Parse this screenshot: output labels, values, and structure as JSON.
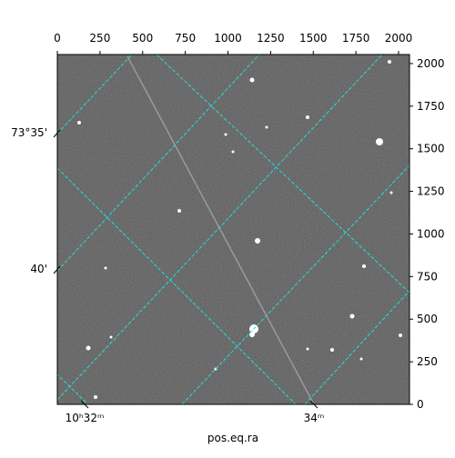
{
  "chart_data": {
    "type": "image",
    "x_label": "pos.eq.ra",
    "xlim": [
      0,
      2064
    ],
    "ylim": [
      0,
      2053
    ],
    "xticks": [
      0,
      250,
      500,
      750,
      1000,
      1250,
      1500,
      1750,
      2000
    ],
    "yticks": [
      0,
      250,
      500,
      750,
      1000,
      1250,
      1500,
      1750,
      2000
    ],
    "dec_tick_labels": [
      "73°35'",
      "40'"
    ],
    "ra_tick_labels": [
      "10ʰ32ᵐ",
      "34ᵐ"
    ],
    "grid_color": "#22dddd"
  }
}
